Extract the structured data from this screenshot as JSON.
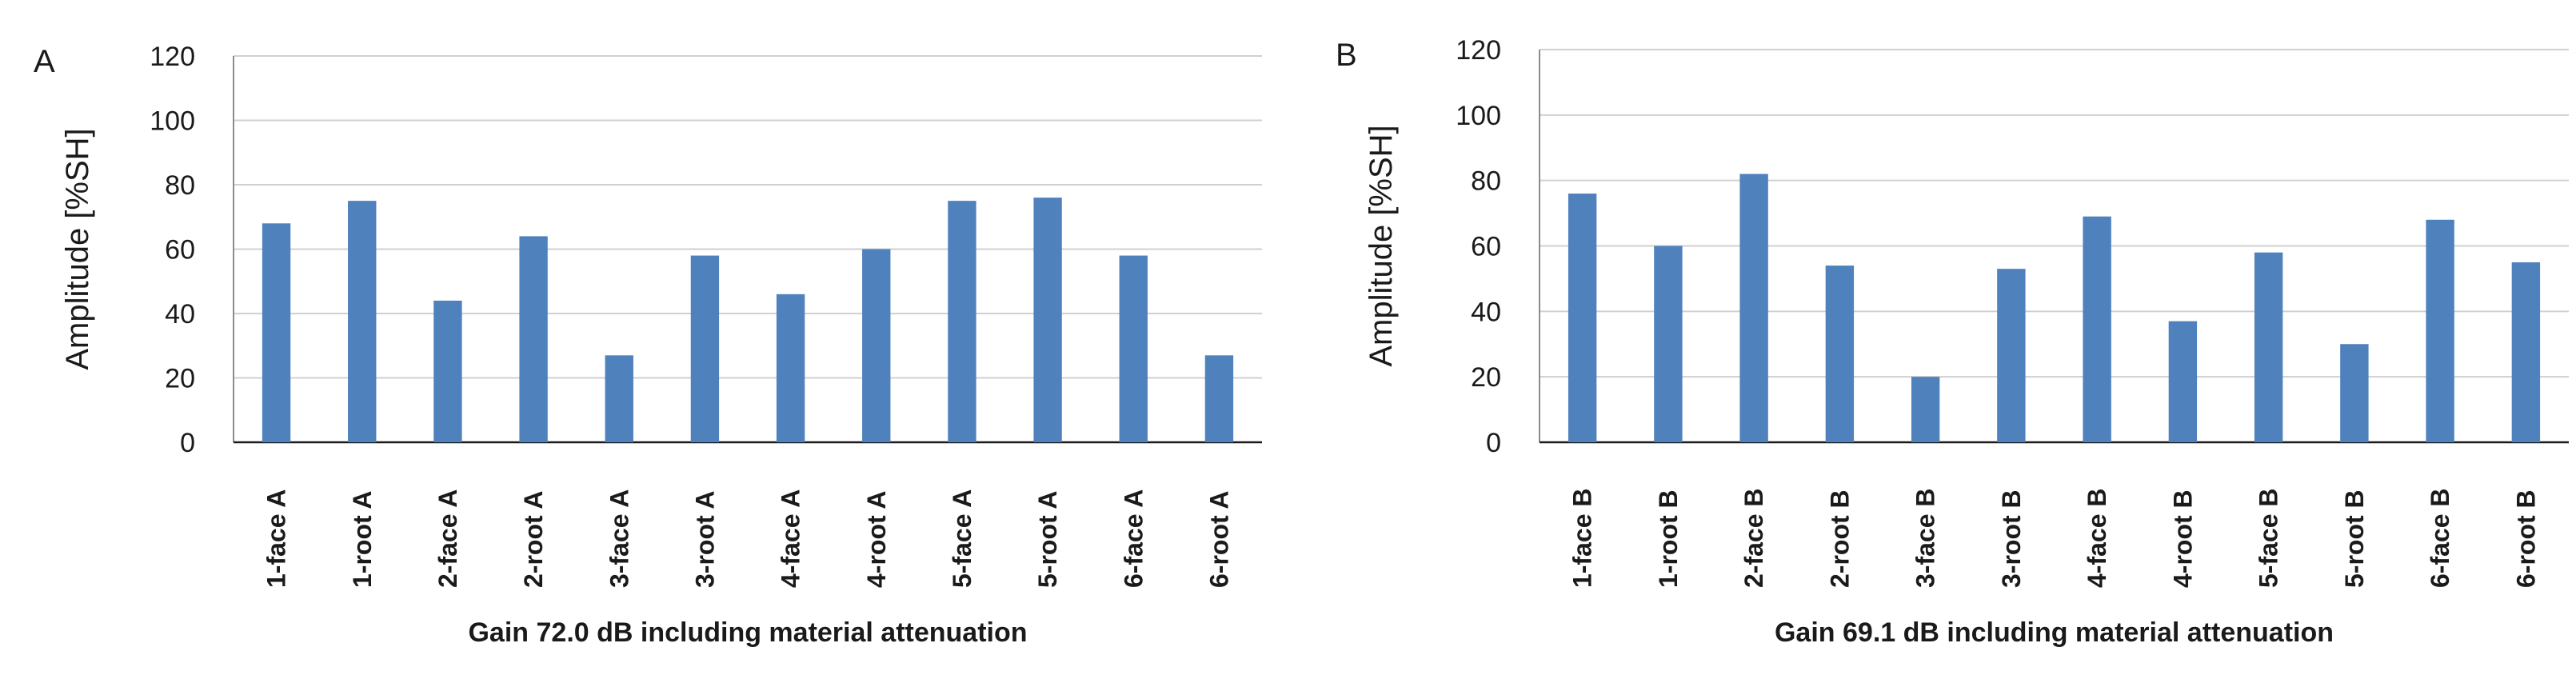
{
  "chart_data": [
    {
      "type": "bar",
      "panel_label": "A",
      "categories": [
        "1-face A",
        "1-root A",
        "2-face A",
        "2-root A",
        "3-face A",
        "3-root A",
        "4-face A",
        "4-root A",
        "5-face A",
        "5-root A",
        "6-face A",
        "6-root A"
      ],
      "values": [
        68,
        75,
        44,
        64,
        27,
        58,
        46,
        60,
        75,
        76,
        58,
        27
      ],
      "ylabel": "Amplitude [%SH]",
      "xlabel": "Gain 72.0 dB including material attenuation",
      "ylim": [
        0,
        120
      ],
      "yticks": [
        "0",
        "20",
        "40",
        "60",
        "80",
        "100",
        "120"
      ],
      "grid": true,
      "bar_color": "#4f81bd"
    },
    {
      "type": "bar",
      "panel_label": "B",
      "categories": [
        "1-face B",
        "1-root B",
        "2-face B",
        "2-root B",
        "3-face B",
        "3-root B",
        "4-face B",
        "4-root B",
        "5-face B",
        "5-root B",
        "6-face B",
        "6-root B"
      ],
      "values": [
        76,
        60,
        82,
        54,
        20,
        53,
        69,
        37,
        58,
        30,
        68,
        55
      ],
      "ylabel": "Amplitude [%SH]",
      "xlabel": "Gain 69.1 dB including material attenuation",
      "ylim": [
        0,
        120
      ],
      "yticks": [
        "0",
        "20",
        "40",
        "60",
        "80",
        "100",
        "120"
      ],
      "grid": true,
      "bar_color": "#4f81bd"
    }
  ]
}
